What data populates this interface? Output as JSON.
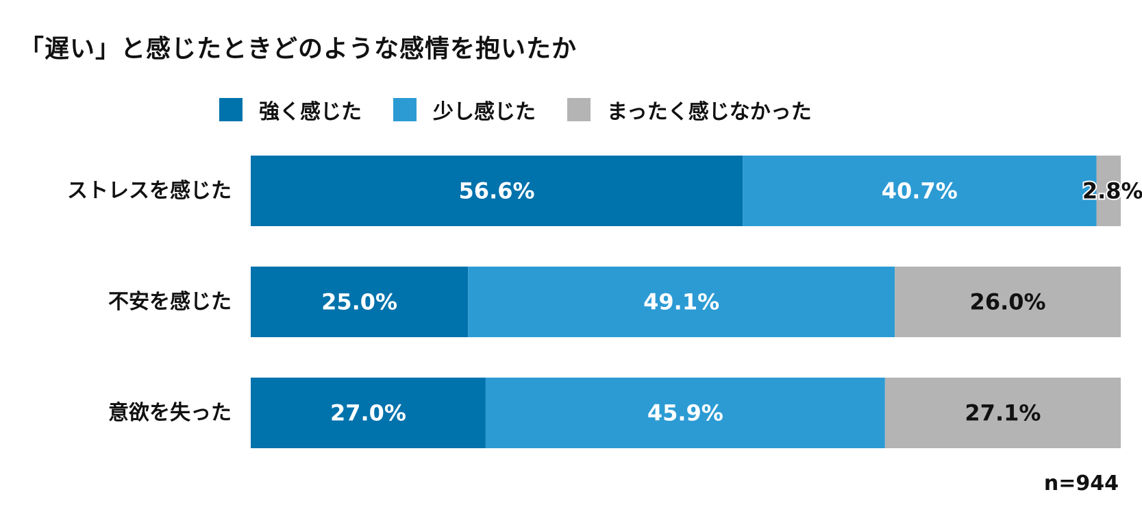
{
  "title": "「遅い」と感じたときどのような感情を抱いたか",
  "sample_note": "n=944",
  "colors": {
    "strong": "#0072AC",
    "some": "#2C9BD4",
    "none": "#B4B4B4"
  },
  "chart_data": {
    "type": "bar",
    "orientation": "horizontal",
    "stacked": true,
    "normalized": true,
    "categories": [
      "ストレスを感じた",
      "不安を感じた",
      "意欲を失った"
    ],
    "series": [
      {
        "name": "強く感じた",
        "values": [
          56.6,
          25.0,
          27.0
        ],
        "labels": [
          "56.6%",
          "25.0%",
          "27.0%"
        ]
      },
      {
        "name": "少し感じた",
        "values": [
          40.7,
          49.1,
          45.9
        ],
        "labels": [
          "40.7%",
          "49.1%",
          "45.9%"
        ]
      },
      {
        "name": "まったく感じなかった",
        "values": [
          2.8,
          26.0,
          27.1
        ],
        "labels": [
          "2.8%",
          "26.0%",
          "27.1%"
        ]
      }
    ],
    "legend_position": "top",
    "grid": false
  }
}
